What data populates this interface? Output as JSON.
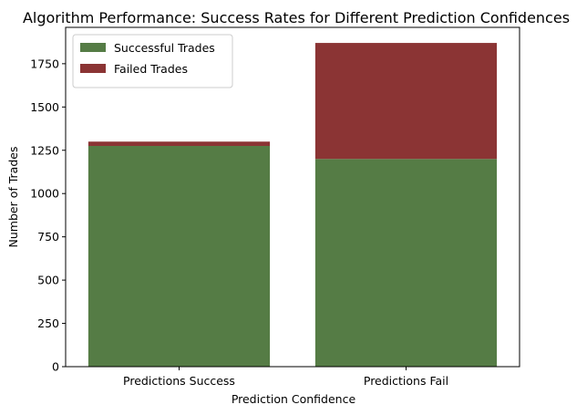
{
  "chart_data": {
    "type": "bar",
    "stacked": true,
    "title": "Algorithm Performance: Success Rates for Different Prediction Confidences",
    "xlabel": "Prediction Confidence",
    "ylabel": "Number of Trades",
    "categories": [
      "Predictions Success",
      "Predictions Fail"
    ],
    "series": [
      {
        "name": "Successful Trades",
        "color": "#557c45",
        "values": [
          1275,
          1200
        ]
      },
      {
        "name": "Failed Trades",
        "color": "#8b3434",
        "values": [
          25,
          670
        ]
      }
    ],
    "yticks": [
      0,
      250,
      500,
      750,
      1000,
      1250,
      1500,
      1750
    ],
    "ylim": [
      0,
      1960
    ],
    "grid": false,
    "legend_position": "top-left"
  }
}
